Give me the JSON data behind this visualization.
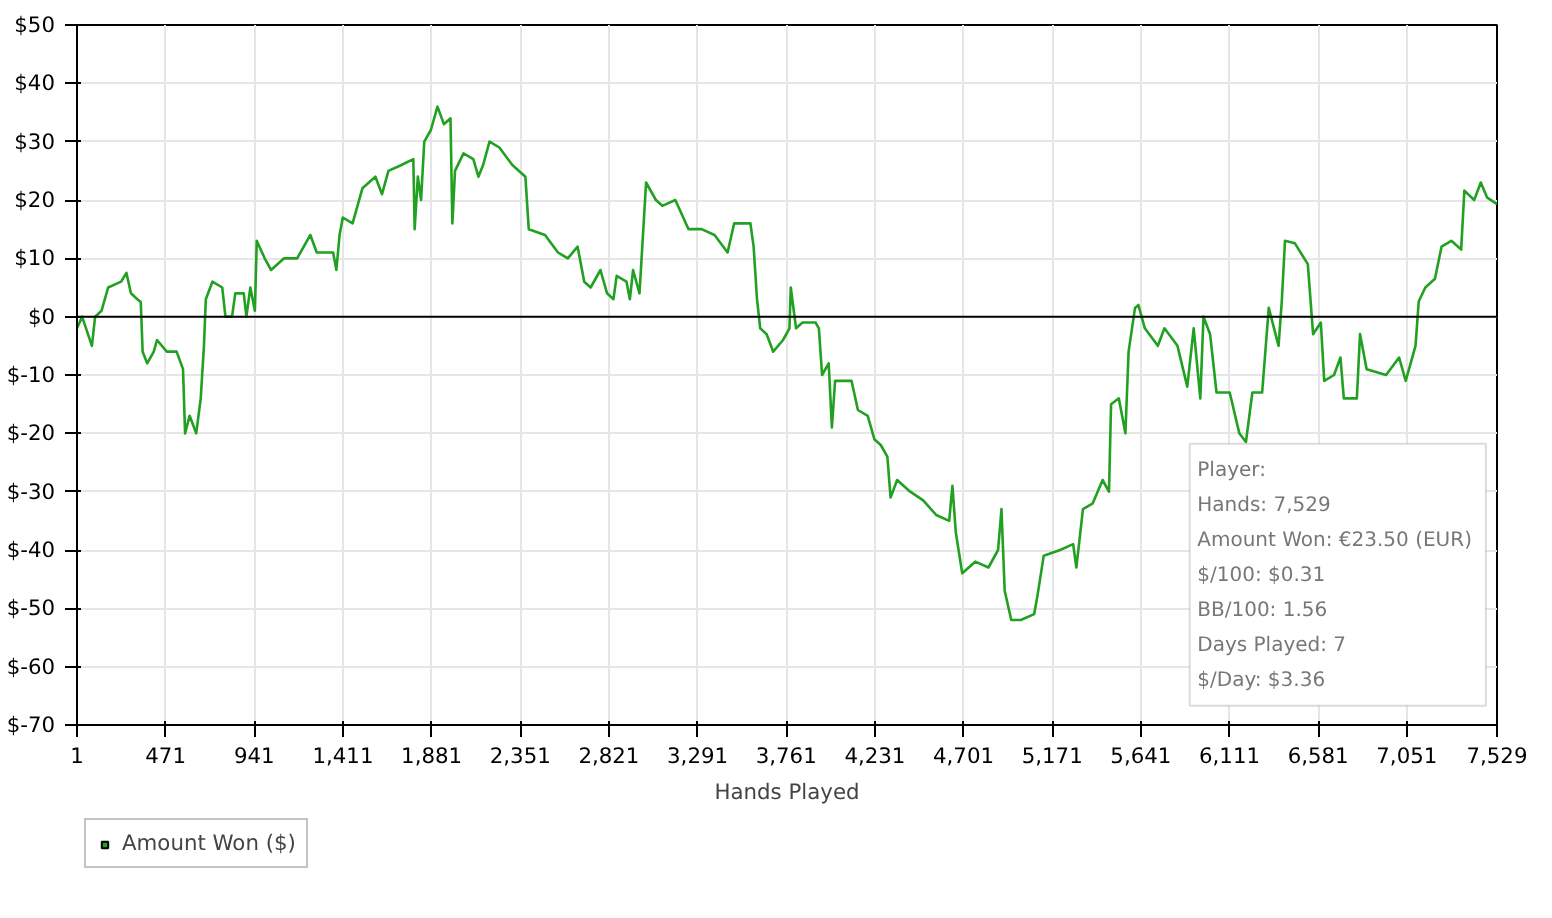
{
  "chart_data": {
    "type": "line",
    "xlabel": "Hands Played",
    "legend": "bottom left",
    "grid": true,
    "xlim": [
      1,
      7529
    ],
    "ylim": [
      -70,
      50
    ],
    "xticks": [
      1,
      {
        "value": 471,
        "label": "471"
      },
      {
        "value": 941,
        "label": "941"
      },
      {
        "value": 1411,
        "label": "1,411"
      },
      {
        "value": 1881,
        "label": "1,881"
      },
      {
        "value": 2351,
        "label": "2,351"
      },
      {
        "value": 2821,
        "label": "2,821"
      },
      {
        "value": 3291,
        "label": "3,291"
      },
      {
        "value": 3761,
        "label": "3,761"
      },
      {
        "value": 4231,
        "label": "4,231"
      },
      {
        "value": 4701,
        "label": "4,701"
      },
      {
        "value": 5171,
        "label": "5,171"
      },
      {
        "value": 5641,
        "label": "5,641"
      },
      {
        "value": 6111,
        "label": "6,111"
      },
      {
        "value": 6581,
        "label": "6,581"
      },
      {
        "value": 7051,
        "label": "7,051"
      },
      {
        "value": 7529,
        "label": "7,529"
      }
    ],
    "yticks": [
      {
        "value": -70,
        "label": "$-70"
      },
      {
        "value": -60,
        "label": "$-60"
      },
      {
        "value": -50,
        "label": "$-50"
      },
      {
        "value": -40,
        "label": "$-40"
      },
      {
        "value": -30,
        "label": "$-30"
      },
      {
        "value": -20,
        "label": "$-20"
      },
      {
        "value": -10,
        "label": "$-10"
      },
      {
        "value": 0,
        "label": "$0"
      },
      {
        "value": 10,
        "label": "$10"
      },
      {
        "value": 20,
        "label": "$20"
      },
      {
        "value": 30,
        "label": "$30"
      },
      {
        "value": 40,
        "label": "$40"
      },
      {
        "value": 50,
        "label": "$50"
      }
    ],
    "ref_lines": [
      {
        "axis": "y",
        "value": 0,
        "color": "#000000"
      }
    ],
    "annotations": [
      "Player:",
      "Hands: 7,529",
      "Amount Won: €23.50 (EUR)",
      "$/100: $0.31",
      "BB/100: 1.56",
      "Days Played: 7",
      "$/Day: $3.36"
    ],
    "series": [
      {
        "name": "Amount Won ($)",
        "color": "#22a022",
        "x": [
          1,
          28,
          80,
          97,
          131,
          166,
          235,
          263,
          287,
          321,
          339,
          349,
          373,
          408,
          425,
          477,
          529,
          563,
          574,
          598,
          633,
          657,
          674,
          684,
          719,
          771,
          788,
          823,
          840,
          885,
          899,
          920,
          944,
          954,
          996,
          1030,
          1099,
          1168,
          1238,
          1272,
          1359,
          1376,
          1393,
          1410,
          1462,
          1514,
          1583,
          1618,
          1652,
          1721,
          1784,
          1791,
          1808,
          1825,
          1842,
          1877,
          1912,
          1946,
          1981,
          1991,
          2005,
          2050,
          2102,
          2129,
          2154,
          2188,
          2240,
          2309,
          2378,
          2396,
          2482,
          2551,
          2603,
          2655,
          2690,
          2724,
          2776,
          2811,
          2845,
          2862,
          2914,
          2932,
          2949,
          2983,
          3018,
          3070,
          3104,
          3173,
          3243,
          3312,
          3381,
          3450,
          3485,
          3571,
          3588,
          3606,
          3623,
          3657,
          3692,
          3744,
          3778,
          3785,
          3813,
          3847,
          3916,
          3934,
          3951,
          3986,
          4003,
          4020,
          4107,
          4141,
          4193,
          4228,
          4262,
          4297,
          4314,
          4349,
          4418,
          4487,
          4556,
          4625,
          4642,
          4660,
          4694,
          4763,
          4833,
          4884,
          4902,
          4919,
          4954,
          5005,
          5075,
          5092,
          5126,
          5213,
          5282,
          5299,
          5334,
          5386,
          5438,
          5472,
          5483,
          5524,
          5559,
          5576,
          5610,
          5628,
          5662,
          5731,
          5766,
          5835,
          5887,
          5921,
          5956,
          5973,
          6008,
          6042,
          6112,
          6163,
          6198,
          6232,
          6284,
          6319,
          6371,
          6388,
          6405,
          6457,
          6526,
          6554,
          6595,
          6613,
          6665,
          6699,
          6717,
          6786,
          6803,
          6838,
          6941,
          7010,
          7045,
          7097,
          7114,
          7149,
          7200,
          7235,
          7287,
          7339,
          7356,
          7408,
          7443,
          7477,
          7529
        ],
        "values": [
          -2,
          0,
          -5,
          0,
          1,
          5,
          6,
          7.5,
          4,
          3,
          2.5,
          -6,
          -8,
          -6,
          -4,
          -6,
          -6,
          -9,
          -20,
          -17,
          -20,
          -14,
          -5,
          3,
          6,
          5,
          0,
          0,
          4,
          4,
          0,
          5,
          1,
          13,
          10,
          8,
          10,
          10,
          14,
          11,
          11,
          8,
          14,
          17,
          16,
          22,
          24,
          21,
          25,
          26,
          27,
          15,
          24,
          20,
          30,
          32,
          36,
          33,
          34,
          16,
          25,
          28,
          27,
          24,
          26,
          30,
          29,
          26,
          24,
          15,
          14,
          11,
          10,
          12,
          6,
          5,
          8,
          4,
          3,
          7,
          6,
          3,
          8,
          4,
          23,
          20,
          19,
          20,
          15,
          15,
          14,
          11,
          16,
          16,
          12,
          3,
          -2,
          -3,
          -6,
          -4,
          -2,
          5,
          -2,
          -1,
          -1,
          -2,
          -10,
          -8,
          -19,
          -11,
          -11,
          -16,
          -17,
          -21,
          -22,
          -24,
          -31,
          -28,
          -30,
          -31.5,
          -34,
          -35,
          -29,
          -37,
          -44,
          -42,
          -43,
          -40,
          -33,
          -47,
          -52,
          -52,
          -51,
          -48,
          -41,
          -40,
          -39,
          -43,
          -33,
          -32,
          -28,
          -30,
          -15,
          -14,
          -20,
          -6,
          1.5,
          2,
          -2,
          -5,
          -2,
          -5,
          -12,
          -2,
          -14,
          0,
          -3,
          -13,
          -13,
          -20,
          -21.5,
          -13,
          -13,
          1.5,
          -5,
          2.6,
          13,
          12.6,
          9,
          -3,
          -1,
          -11,
          -10,
          -7,
          -14,
          -14,
          -3,
          -9,
          -10,
          -7,
          -11,
          -5,
          2.6,
          5,
          6.5,
          12,
          13,
          11.5,
          21.6,
          20,
          23,
          20.4,
          19.3
        ]
      }
    ]
  }
}
